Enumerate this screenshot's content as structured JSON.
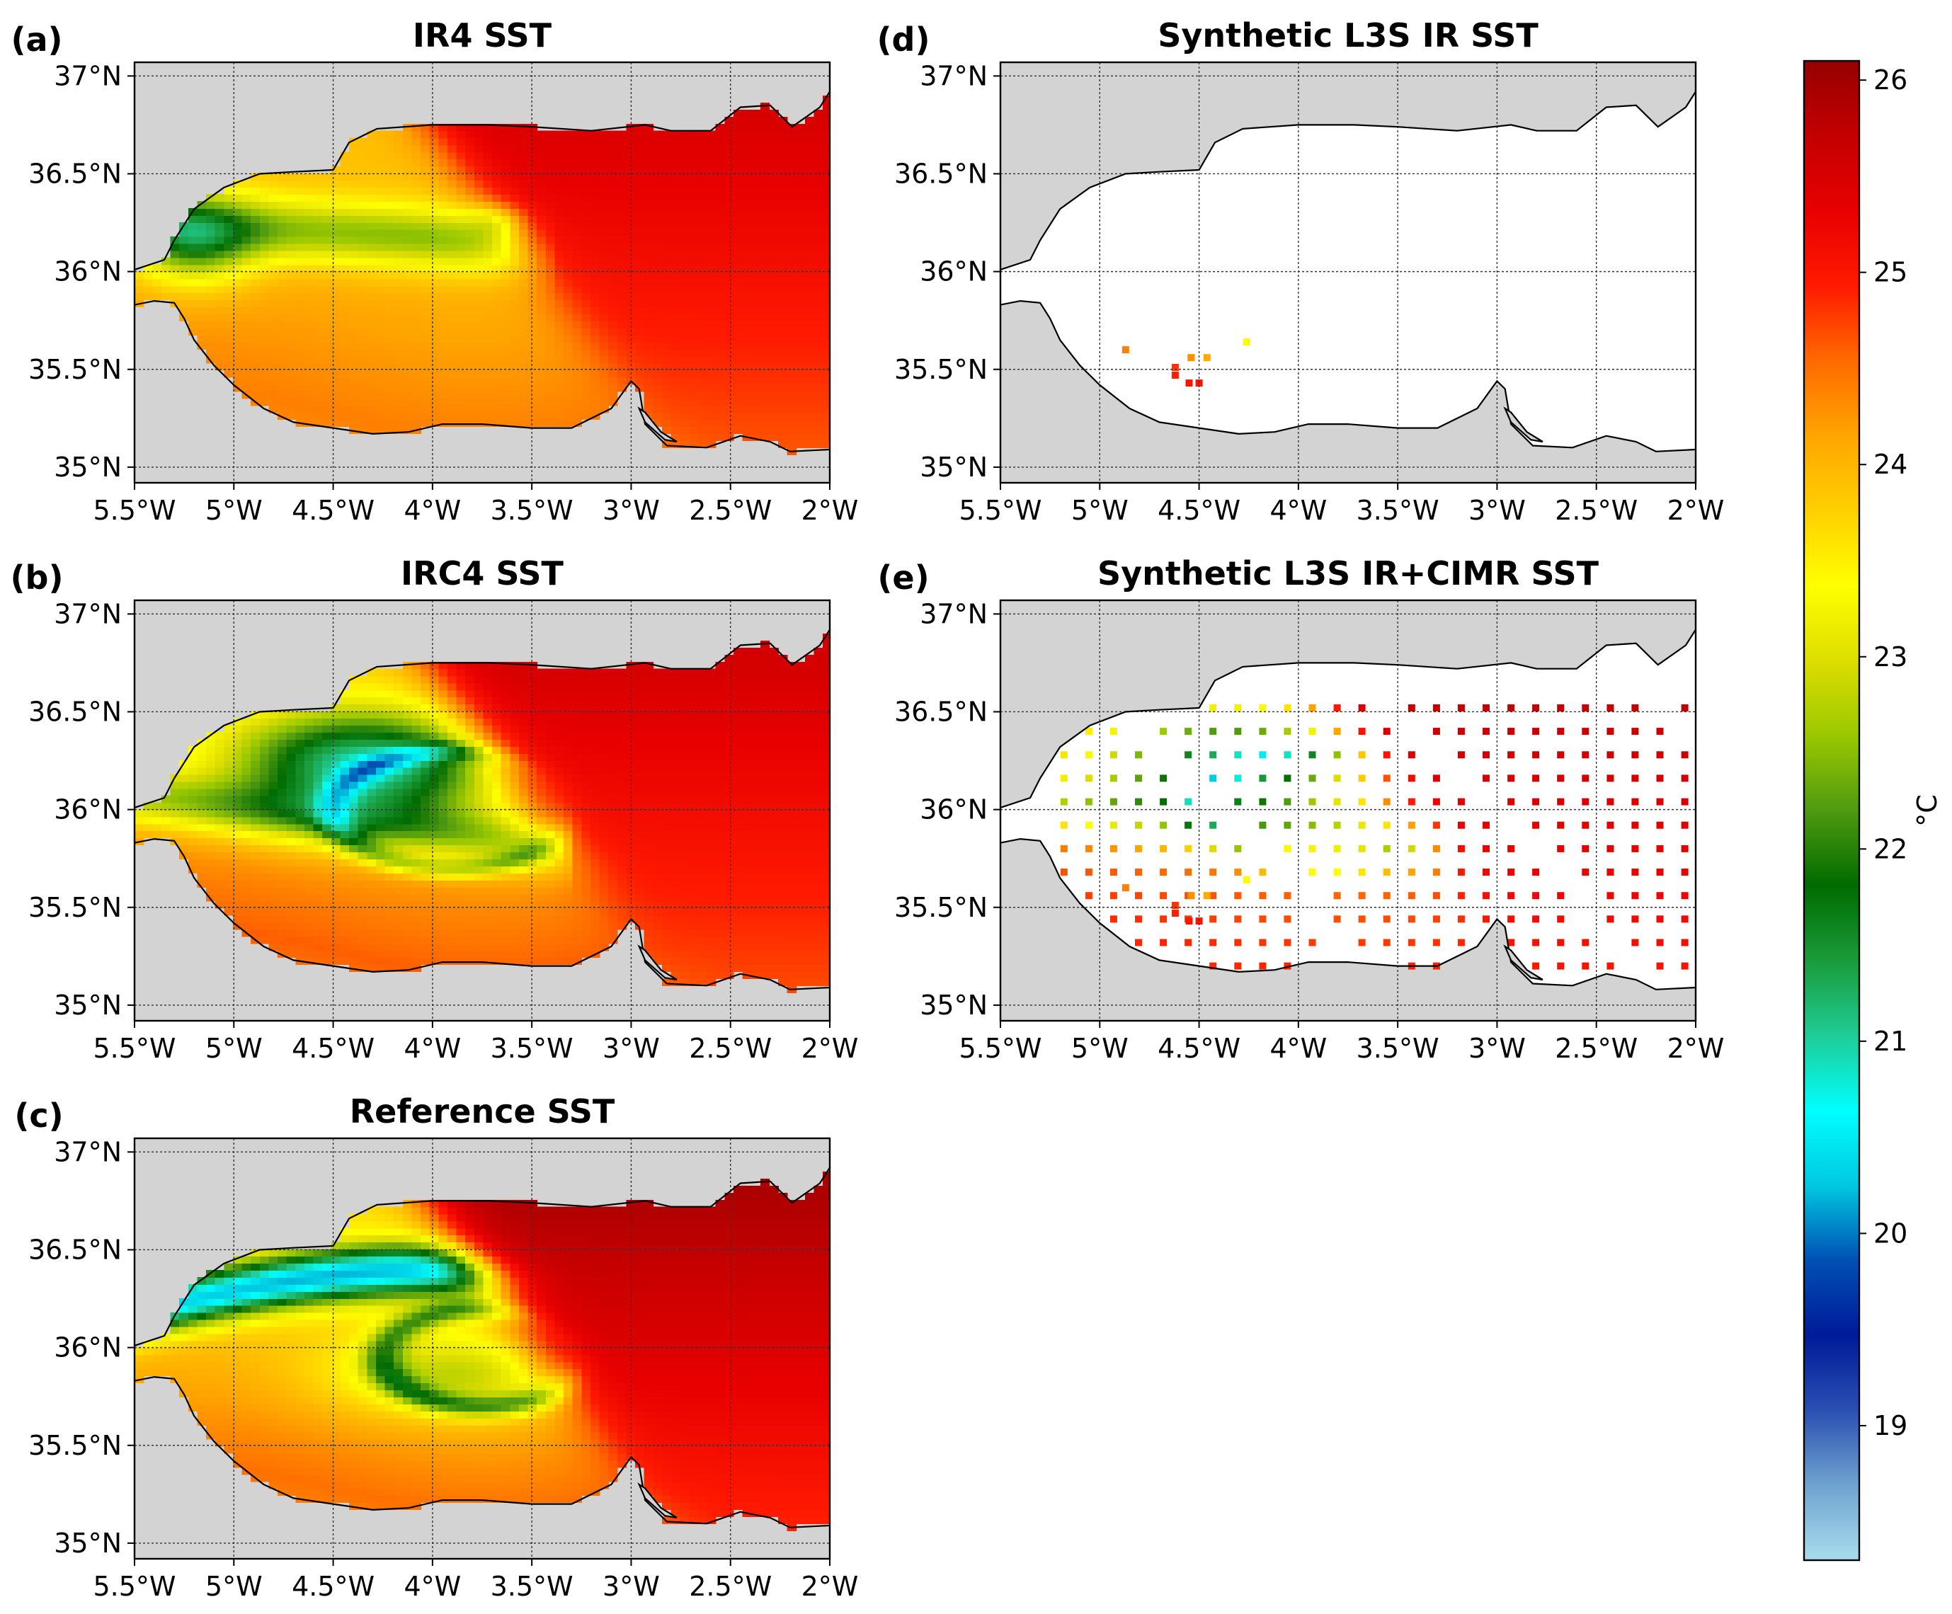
{
  "panels": [
    {
      "id": "a",
      "label": "(a)",
      "title": "IR4 SST",
      "mode": "ir4"
    },
    {
      "id": "b",
      "label": "(b)",
      "title": "IRC4 SST",
      "mode": "irc4"
    },
    {
      "id": "c",
      "label": "(c)",
      "title": "Reference SST",
      "mode": "ref"
    },
    {
      "id": "d",
      "label": "(d)",
      "title": "Synthetic L3S IR SST",
      "mode": "l3s_ir"
    },
    {
      "id": "e",
      "label": "(e)",
      "title": "Synthetic L3S IR+CIMR SST",
      "mode": "l3s_cimr"
    }
  ],
  "axes": {
    "x_ticks": [
      "5.5°W",
      "5°W",
      "4.5°W",
      "4°W",
      "3.5°W",
      "3°W",
      "2.5°W",
      "2°W"
    ],
    "x_values": [
      -5.5,
      -5.0,
      -4.5,
      -4.0,
      -3.5,
      -3.0,
      -2.5,
      -2.0
    ],
    "y_ticks": [
      "37°N",
      "36.5°N",
      "36°N",
      "35.5°N",
      "35°N"
    ],
    "y_values": [
      37.0,
      36.5,
      36.0,
      35.5,
      35.0
    ],
    "lon_range": [
      -5.5,
      -2.0
    ],
    "lat_range": [
      34.92,
      37.07
    ]
  },
  "colorbar": {
    "label": "°C",
    "ticks": [
      "19",
      "20",
      "21",
      "22",
      "23",
      "24",
      "25",
      "26"
    ],
    "tick_values": [
      19,
      20,
      21,
      22,
      23,
      24,
      25,
      26
    ],
    "range": [
      18.3,
      26.1
    ],
    "stops": [
      "#a8dcec",
      "#6fa3cf",
      "#2a4fb2",
      "#001a99",
      "#0050b4",
      "#00c8e0",
      "#00ffff",
      "#1fcc96",
      "#1a9b3a",
      "#006b00",
      "#4f9a10",
      "#9ac800",
      "#dede00",
      "#ffff00",
      "#ffd000",
      "#ffa500",
      "#ff6a00",
      "#ff1a00",
      "#e80000",
      "#c40000",
      "#960000"
    ]
  },
  "colors": {
    "land": "#d3d3d3",
    "sea_missing": "#ffffff",
    "coast": "#000000",
    "grid": "#333333"
  },
  "l3s_ir_points": [
    [
      -4.87,
      35.6,
      24.4
    ],
    [
      -4.62,
      35.51,
      24.8
    ],
    [
      -4.62,
      35.47,
      24.9
    ],
    [
      -4.55,
      35.43,
      25.0
    ],
    [
      -4.5,
      35.43,
      25.0
    ],
    [
      -4.54,
      35.56,
      24.3
    ],
    [
      -4.46,
      35.56,
      24.1
    ],
    [
      -4.26,
      35.64,
      23.4
    ]
  ]
}
